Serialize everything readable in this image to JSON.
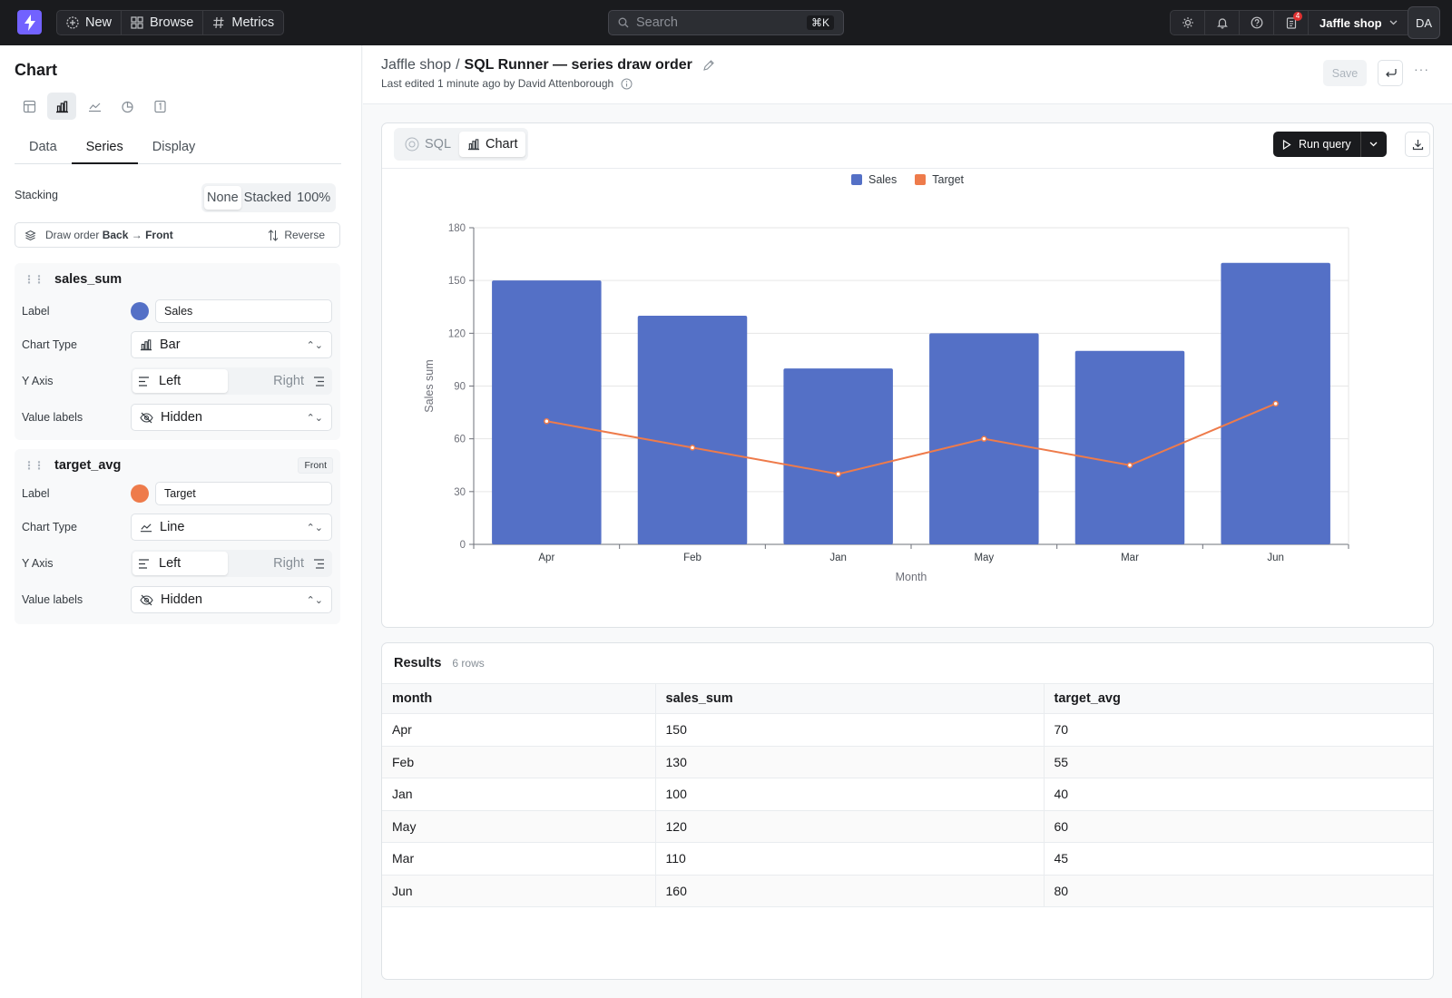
{
  "topbar": {
    "nav": [
      {
        "label": "New",
        "icon": "plus-circle-icon"
      },
      {
        "label": "Browse",
        "icon": "grid-icon"
      },
      {
        "label": "Metrics",
        "icon": "hash-icon"
      }
    ],
    "search_placeholder": "Search",
    "search_shortcut": "⌘K",
    "notification_count": "4",
    "project": "Jaffle shop",
    "avatar": "DA"
  },
  "left": {
    "title": "Chart",
    "tabs": [
      "Data",
      "Series",
      "Display"
    ],
    "active_tab": "Series",
    "stacking_label": "Stacking",
    "stacking_options": [
      "None",
      "Stacked",
      "100%"
    ],
    "stacking_selected": "None",
    "draw_order": {
      "prefix": "Draw order",
      "from": "Back",
      "arrow": "→",
      "to": "Front",
      "reverse": "Reverse"
    },
    "series": [
      {
        "name": "sales_sum",
        "badge": "",
        "label_field": "Label",
        "label": "Sales",
        "color": "#5470c6",
        "chart_type_field": "Chart Type",
        "chart_type": "Bar",
        "y_axis_field": "Y Axis",
        "y_left": "Left",
        "y_right": "Right",
        "value_labels_field": "Value labels",
        "value_labels": "Hidden"
      },
      {
        "name": "target_avg",
        "badge": "Front",
        "label_field": "Label",
        "label": "Target",
        "color": "#ee7b4b",
        "chart_type_field": "Chart Type",
        "chart_type": "Line",
        "y_axis_field": "Y Axis",
        "y_left": "Left",
        "y_right": "Right",
        "value_labels_field": "Value labels",
        "value_labels": "Hidden"
      }
    ]
  },
  "header": {
    "project": "Jaffle shop",
    "separator": "/",
    "title": "SQL Runner — series draw order",
    "edited": "Last edited 1 minute ago by David Attenborough",
    "save": "Save"
  },
  "panel": {
    "modes": [
      "SQL",
      "Chart"
    ],
    "active_mode": "Chart",
    "run": "Run query"
  },
  "chart_data": {
    "type": "bar",
    "categories": [
      "Apr",
      "Feb",
      "Jan",
      "May",
      "Mar",
      "Jun"
    ],
    "series": [
      {
        "name": "Sales",
        "type": "bar",
        "color": "#5470c6",
        "values": [
          150,
          130,
          100,
          120,
          110,
          160
        ]
      },
      {
        "name": "Target",
        "type": "line",
        "color": "#ee7b4b",
        "values": [
          70,
          55,
          40,
          60,
          45,
          80
        ]
      }
    ],
    "xlabel": "Month",
    "ylabel": "Sales sum",
    "ylim": [
      0,
      180
    ],
    "yticks": [
      0,
      30,
      60,
      90,
      120,
      150,
      180
    ],
    "legend": "top-center",
    "grid": true
  },
  "results": {
    "title": "Results",
    "count": "6 rows",
    "columns": [
      "month",
      "sales_sum",
      "target_avg"
    ],
    "rows": [
      [
        "Apr",
        "150",
        "70"
      ],
      [
        "Feb",
        "130",
        "55"
      ],
      [
        "Jan",
        "100",
        "40"
      ],
      [
        "May",
        "120",
        "60"
      ],
      [
        "Mar",
        "110",
        "45"
      ],
      [
        "Jun",
        "160",
        "80"
      ]
    ]
  }
}
